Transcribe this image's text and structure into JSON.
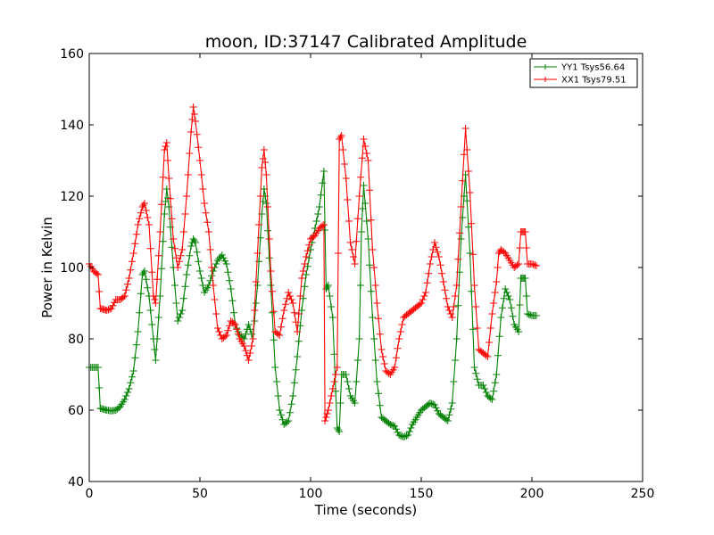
{
  "chart_data": {
    "type": "line",
    "title": "moon, ID:37147 Calibrated Amplitude",
    "xlabel": "Time (seconds)",
    "ylabel": "Power in Kelvin",
    "xlim": [
      0,
      250
    ],
    "ylim": [
      40,
      160
    ],
    "xticks": [
      "0",
      "50",
      "100",
      "150",
      "200",
      "250"
    ],
    "yticks": [
      "40",
      "60",
      "80",
      "100",
      "120",
      "140",
      "160"
    ],
    "grid": false,
    "legend_position": "top-right",
    "marker": "+",
    "series": [
      {
        "name": "YY1 Tsys56.64",
        "color": "#008000",
        "points": [
          [
            0,
            72
          ],
          [
            2,
            72
          ],
          [
            4,
            72
          ],
          [
            5,
            60.5
          ],
          [
            8,
            60
          ],
          [
            10,
            59.8
          ],
          [
            12,
            60
          ],
          [
            14,
            61
          ],
          [
            16,
            63
          ],
          [
            18,
            66
          ],
          [
            20,
            71
          ],
          [
            22,
            82
          ],
          [
            24,
            98
          ],
          [
            25,
            99
          ],
          [
            27,
            92
          ],
          [
            29,
            80
          ],
          [
            30,
            74
          ],
          [
            32,
            92
          ],
          [
            34,
            115
          ],
          [
            35,
            122
          ],
          [
            36,
            117
          ],
          [
            38,
            100
          ],
          [
            40,
            85
          ],
          [
            42,
            88
          ],
          [
            44,
            98
          ],
          [
            46,
            106
          ],
          [
            47,
            108
          ],
          [
            48,
            107
          ],
          [
            50,
            99
          ],
          [
            52,
            93
          ],
          [
            54,
            95
          ],
          [
            56,
            99
          ],
          [
            58,
            102
          ],
          [
            60,
            103.5
          ],
          [
            62,
            101
          ],
          [
            64,
            94
          ],
          [
            66,
            84
          ],
          [
            68,
            81
          ],
          [
            70,
            80
          ],
          [
            72,
            84
          ],
          [
            74,
            80
          ],
          [
            76,
            95
          ],
          [
            78,
            115
          ],
          [
            79,
            122
          ],
          [
            80,
            118
          ],
          [
            82,
            95
          ],
          [
            84,
            72
          ],
          [
            86,
            60
          ],
          [
            88,
            56
          ],
          [
            90,
            57
          ],
          [
            92,
            64
          ],
          [
            94,
            75
          ],
          [
            96,
            88
          ],
          [
            98,
            98
          ],
          [
            100,
            105
          ],
          [
            102,
            111
          ],
          [
            104,
            117
          ],
          [
            106,
            127
          ],
          [
            107,
            94
          ],
          [
            108,
            95
          ],
          [
            110,
            86
          ],
          [
            112,
            55
          ],
          [
            113,
            54
          ],
          [
            114,
            70
          ],
          [
            116,
            70
          ],
          [
            118,
            64
          ],
          [
            120,
            62
          ],
          [
            122,
            80
          ],
          [
            123,
            110
          ],
          [
            124,
            123
          ],
          [
            126,
            108
          ],
          [
            128,
            86
          ],
          [
            130,
            68
          ],
          [
            132,
            58
          ],
          [
            134,
            57
          ],
          [
            136,
            56
          ],
          [
            138,
            55.5
          ],
          [
            140,
            53
          ],
          [
            142,
            52.5
          ],
          [
            144,
            53
          ],
          [
            146,
            56
          ],
          [
            148,
            58
          ],
          [
            150,
            60
          ],
          [
            152,
            61
          ],
          [
            154,
            62
          ],
          [
            156,
            61.5
          ],
          [
            158,
            59
          ],
          [
            160,
            58
          ],
          [
            162,
            57
          ],
          [
            164,
            62
          ],
          [
            166,
            80
          ],
          [
            168,
            108
          ],
          [
            170,
            126
          ],
          [
            172,
            104
          ],
          [
            174,
            72
          ],
          [
            176,
            67
          ],
          [
            178,
            67
          ],
          [
            180,
            64
          ],
          [
            182,
            63
          ],
          [
            184,
            70
          ],
          [
            186,
            86
          ],
          [
            188,
            94
          ],
          [
            190,
            91
          ],
          [
            192,
            84
          ],
          [
            194,
            82
          ],
          [
            195,
            97
          ],
          [
            196,
            97
          ],
          [
            197,
            97
          ],
          [
            198,
            87
          ],
          [
            200,
            86.5
          ],
          [
            202,
            86.5
          ]
        ]
      },
      {
        "name": "XX1 Tsys79.51",
        "color": "#ff0000",
        "points": [
          [
            0,
            101
          ],
          [
            2,
            99
          ],
          [
            4,
            98
          ],
          [
            5,
            88.5
          ],
          [
            8,
            88
          ],
          [
            10,
            88.5
          ],
          [
            12,
            91
          ],
          [
            14,
            91
          ],
          [
            16,
            92
          ],
          [
            18,
            97
          ],
          [
            20,
            104
          ],
          [
            22,
            112
          ],
          [
            24,
            117
          ],
          [
            25,
            118
          ],
          [
            27,
            112
          ],
          [
            29,
            92
          ],
          [
            30,
            90
          ],
          [
            32,
            110
          ],
          [
            34,
            133
          ],
          [
            35,
            135
          ],
          [
            36,
            125
          ],
          [
            38,
            108
          ],
          [
            40,
            100
          ],
          [
            42,
            105
          ],
          [
            44,
            120
          ],
          [
            46,
            138
          ],
          [
            47,
            145
          ],
          [
            48,
            141
          ],
          [
            50,
            130
          ],
          [
            52,
            118
          ],
          [
            54,
            110
          ],
          [
            56,
            95
          ],
          [
            58,
            83
          ],
          [
            60,
            80
          ],
          [
            62,
            81
          ],
          [
            64,
            85
          ],
          [
            66,
            84
          ],
          [
            68,
            80
          ],
          [
            70,
            78
          ],
          [
            72,
            74
          ],
          [
            74,
            80
          ],
          [
            76,
            104
          ],
          [
            78,
            128
          ],
          [
            79,
            133
          ],
          [
            80,
            126
          ],
          [
            82,
            99
          ],
          [
            84,
            82
          ],
          [
            86,
            81
          ],
          [
            88,
            88
          ],
          [
            90,
            93
          ],
          [
            92,
            90
          ],
          [
            94,
            82
          ],
          [
            96,
            97
          ],
          [
            98,
            103
          ],
          [
            100,
            108
          ],
          [
            102,
            109
          ],
          [
            104,
            111
          ],
          [
            106,
            112
          ],
          [
            106.5,
            57
          ],
          [
            108,
            60
          ],
          [
            110,
            66
          ],
          [
            112,
            72
          ],
          [
            113,
            136
          ],
          [
            114,
            137
          ],
          [
            116,
            125
          ],
          [
            118,
            107
          ],
          [
            120,
            101
          ],
          [
            122,
            120
          ],
          [
            124,
            136
          ],
          [
            126,
            130
          ],
          [
            128,
            105
          ],
          [
            130,
            90
          ],
          [
            132,
            77
          ],
          [
            134,
            71
          ],
          [
            136,
            70
          ],
          [
            138,
            72
          ],
          [
            140,
            80
          ],
          [
            142,
            86
          ],
          [
            144,
            87
          ],
          [
            146,
            88
          ],
          [
            148,
            89
          ],
          [
            150,
            90
          ],
          [
            152,
            93
          ],
          [
            154,
            101
          ],
          [
            156,
            107
          ],
          [
            158,
            103
          ],
          [
            160,
            96
          ],
          [
            162,
            89
          ],
          [
            164,
            86
          ],
          [
            166,
            95
          ],
          [
            168,
            117
          ],
          [
            170,
            139
          ],
          [
            172,
            121
          ],
          [
            174,
            95
          ],
          [
            176,
            77
          ],
          [
            178,
            76
          ],
          [
            180,
            75
          ],
          [
            182,
            87
          ],
          [
            184,
            96
          ],
          [
            185,
            104
          ],
          [
            186,
            105
          ],
          [
            188,
            104
          ],
          [
            190,
            102
          ],
          [
            192,
            100
          ],
          [
            194,
            101
          ],
          [
            195,
            110
          ],
          [
            196,
            110
          ],
          [
            197,
            110
          ],
          [
            198,
            101
          ],
          [
            200,
            101
          ],
          [
            202,
            100.5
          ]
        ]
      }
    ]
  }
}
